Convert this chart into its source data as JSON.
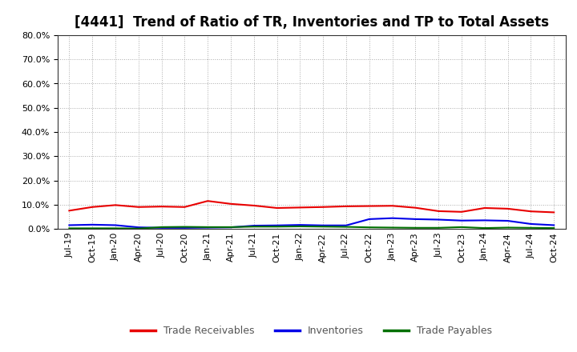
{
  "title": "[4441]  Trend of Ratio of TR, Inventories and TP to Total Assets",
  "x_labels": [
    "Jul-19",
    "Oct-19",
    "Jan-20",
    "Apr-20",
    "Jul-20",
    "Oct-20",
    "Jan-21",
    "Apr-21",
    "Jul-21",
    "Oct-21",
    "Jan-22",
    "Apr-22",
    "Jul-22",
    "Oct-22",
    "Jan-23",
    "Apr-23",
    "Jul-23",
    "Oct-23",
    "Jan-24",
    "Apr-24",
    "Jul-24",
    "Oct-24"
  ],
  "trade_receivables": [
    0.075,
    0.09,
    0.098,
    0.09,
    0.092,
    0.09,
    0.115,
    0.103,
    0.096,
    0.086,
    0.088,
    0.09,
    0.093,
    0.094,
    0.095,
    0.087,
    0.073,
    0.07,
    0.086,
    0.083,
    0.072,
    0.068
  ],
  "inventories": [
    0.015,
    0.017,
    0.015,
    0.006,
    0.004,
    0.004,
    0.005,
    0.006,
    0.013,
    0.014,
    0.016,
    0.014,
    0.014,
    0.04,
    0.044,
    0.04,
    0.038,
    0.034,
    0.035,
    0.033,
    0.02,
    0.015
  ],
  "trade_payables": [
    0.002,
    0.002,
    0.002,
    0.001,
    0.007,
    0.008,
    0.007,
    0.007,
    0.009,
    0.009,
    0.01,
    0.009,
    0.008,
    0.006,
    0.005,
    0.004,
    0.004,
    0.007,
    0.003,
    0.005,
    0.004,
    0.003
  ],
  "tr_color": "#e80000",
  "inv_color": "#0000e8",
  "tp_color": "#007000",
  "ylim_min": 0.0,
  "ylim_max": 0.8,
  "yticks": [
    0.0,
    0.1,
    0.2,
    0.3,
    0.4,
    0.5,
    0.6,
    0.7,
    0.8
  ],
  "background_color": "#ffffff",
  "plot_bg_color": "#ffffff",
  "grid_color": "#aaaaaa",
  "legend_labels": [
    "Trade Receivables",
    "Inventories",
    "Trade Payables"
  ],
  "title_fontsize": 12,
  "tick_fontsize": 8,
  "legend_fontsize": 9
}
